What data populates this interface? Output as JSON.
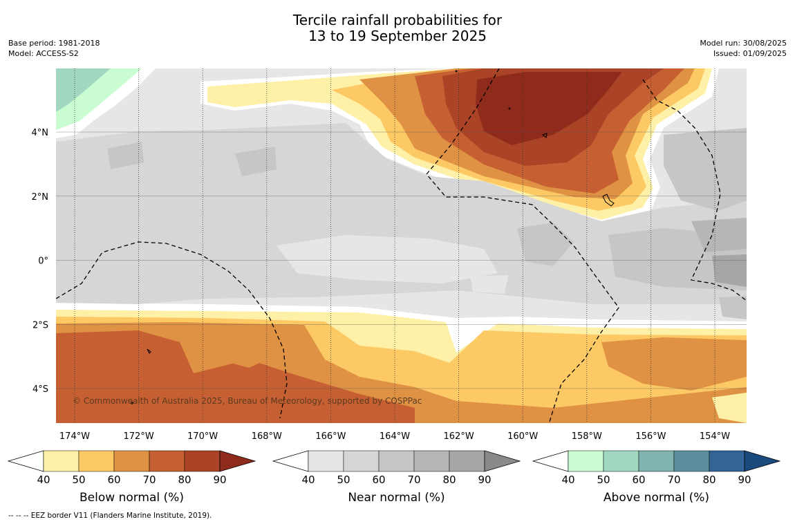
{
  "header": {
    "title_line1": "Tercile rainfall probabilities for",
    "title_line2": "13 to 19 September 2025",
    "base_period": "Base period: 1981-2018",
    "model": "Model: ACCESS-S2",
    "model_run": "Model run: 30/08/2025",
    "issued": "Issued: 01/09/2025"
  },
  "map": {
    "copyright": "© Commonwealth of Australia 2025, Bureau of Meteorology, supported by COSPPac",
    "lat_labels": [
      "4°N",
      "2°N",
      "0°",
      "2°S",
      "4°S"
    ],
    "lon_labels": [
      "174°W",
      "172°W",
      "170°W",
      "168°W",
      "166°W",
      "164°W",
      "162°W",
      "160°W",
      "158°W",
      "156°W",
      "154°W"
    ],
    "colors": {
      "below": [
        "#fef0a7",
        "#fdc965",
        "#df9244",
        "#c65f31",
        "#ab4326",
        "#8f2b1c"
      ],
      "near": [
        "#e6e6e6",
        "#d6d6d6",
        "#c6c6c6",
        "#b6b6b6",
        "#a6a6a6",
        "#8a8a8a"
      ],
      "above": [
        "#c9fcd0",
        "#a1d6c1",
        "#80b3b0",
        "#5b8fa0",
        "#346496",
        "#1b4a7e"
      ]
    }
  },
  "colorbars": {
    "ticks": [
      "40",
      "50",
      "60",
      "70",
      "80",
      "90"
    ],
    "below_label": "Below normal (%)",
    "near_label": "Near normal (%)",
    "above_label": "Above normal (%)"
  },
  "footnote": "-- -- -- EEZ border V11 (Flanders Marine Institute, 2019)."
}
